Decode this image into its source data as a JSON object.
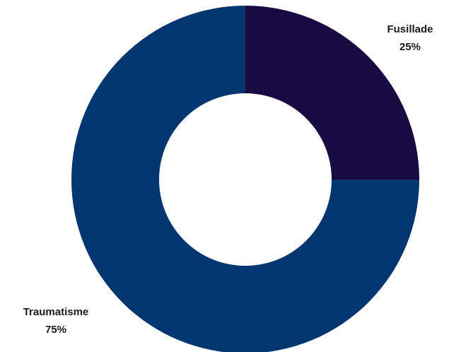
{
  "chart_data": {
    "type": "pie",
    "variant": "donut",
    "title": "",
    "categories": [
      "Fusillade",
      "Traumatisme"
    ],
    "values": [
      25,
      75
    ],
    "percent_labels": [
      "25%",
      "75%"
    ],
    "colors": [
      "#170b42",
      "#02366e"
    ],
    "legend": "none",
    "data_label_position": "outside"
  }
}
